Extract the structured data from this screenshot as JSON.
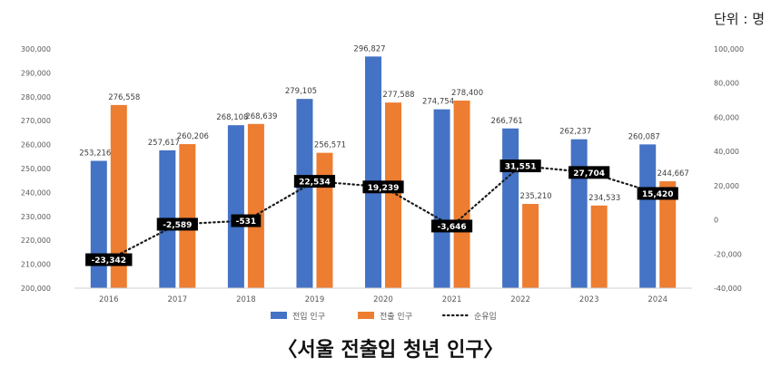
{
  "unit_label": "단위 : 명",
  "caption": "〈서울 전출입 청년 인구〉",
  "colors": {
    "inflow": "#4472C4",
    "outflow": "#ED7D31",
    "net": "#1a1a1a",
    "axis_text": "#595959",
    "label_text": "#404040",
    "net_label_bg": "#000000",
    "net_label_text": "#ffffff"
  },
  "chart_data": {
    "type": "bar",
    "categories": [
      "2016",
      "2017",
      "2018",
      "2019",
      "2020",
      "2021",
      "2022",
      "2023",
      "2024"
    ],
    "series": [
      {
        "name": "전입 인구",
        "type": "bar",
        "axis": "left",
        "values": [
          253216,
          257617,
          268108,
          279105,
          296827,
          274754,
          266761,
          262237,
          260087
        ],
        "labels": [
          "253,216",
          "257,617",
          "268,108",
          "279,105",
          "296,827",
          "274,754",
          "266,761",
          "262,237",
          "260,087"
        ]
      },
      {
        "name": "전출 인구",
        "type": "bar",
        "axis": "left",
        "values": [
          276558,
          260206,
          268639,
          256571,
          277588,
          278400,
          235210,
          234533,
          244667
        ],
        "labels": [
          "276,558",
          "260,206",
          "268,639",
          "256,571",
          "277,588",
          "278,400",
          "235,210",
          "234,533",
          "244,667"
        ]
      },
      {
        "name": "순유입",
        "type": "line",
        "style": "dotted",
        "axis": "right",
        "values": [
          -23342,
          -2589,
          -531,
          22534,
          19239,
          -3646,
          31551,
          27704,
          15420
        ],
        "labels": [
          "-23,342",
          "-2,589",
          "-531",
          "22,534",
          "19,239",
          "-3,646",
          "31,551",
          "27,704",
          "15,420"
        ]
      }
    ],
    "y_left": {
      "range": [
        200000,
        300000
      ],
      "ticks": [
        "200,000",
        "210,000",
        "220,000",
        "230,000",
        "240,000",
        "250,000",
        "260,000",
        "270,000",
        "280,000",
        "290,000",
        "300,000"
      ]
    },
    "y_right": {
      "range": [
        -40000,
        100000
      ],
      "ticks": [
        "-40,000",
        "-20,000",
        "0",
        "20,000",
        "40,000",
        "60,000",
        "80,000",
        "100,000"
      ]
    },
    "grid": false,
    "legend_position": "bottom"
  }
}
